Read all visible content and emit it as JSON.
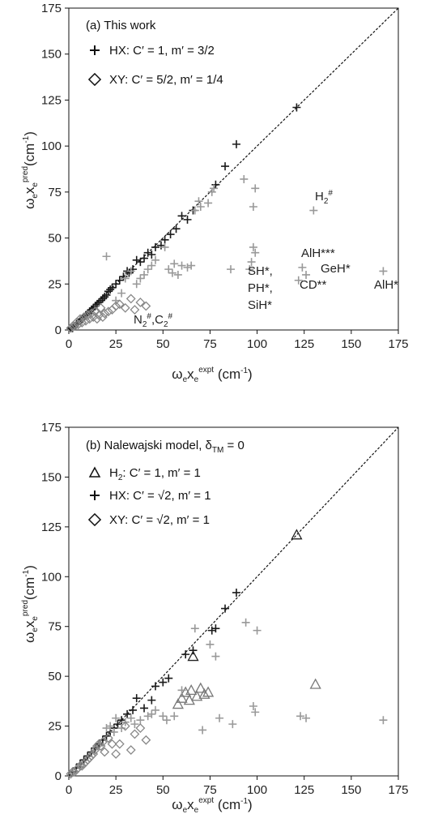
{
  "chart_data": [
    {
      "type": "scatter",
      "title": "(a) This work",
      "xlabel": "ωexeexpt (cm-1)",
      "ylabel": "ωexepred (cm-1)",
      "xlim": [
        0,
        175
      ],
      "ylim": [
        0,
        175
      ],
      "x_ticks": [
        "0",
        "25",
        "50",
        "75",
        "100",
        "125",
        "150",
        "175"
      ],
      "y_ticks": [
        "0",
        "25",
        "50",
        "75",
        "100",
        "125",
        "150",
        "175"
      ],
      "grid": false,
      "legend_position": "top-left",
      "legend": [
        {
          "marker": "plus",
          "text": "HX: C′ = 1, m′ = 3/2"
        },
        {
          "marker": "diamond",
          "text": "XY: C′ = 5/2, m′ = 1/4"
        }
      ],
      "annotations": [
        {
          "text": "H2#",
          "x": 128,
          "y": 70
        },
        {
          "text": "AlH***",
          "x": 122,
          "y": 40
        },
        {
          "text": "GeH*",
          "x": 131,
          "y": 33
        },
        {
          "text": "CD**",
          "x": 121,
          "y": 23
        },
        {
          "text": "AlH*",
          "x": 161,
          "y": 22
        },
        {
          "text": "SH*,",
          "x": 93,
          "y": 28
        },
        {
          "text": "PH*,",
          "x": 93,
          "y": 18
        },
        {
          "text": "SiH*",
          "x": 93,
          "y": 9
        },
        {
          "text": "N2#,C2#",
          "x": 34,
          "y": 3
        }
      ],
      "series": [
        {
          "name": "HX",
          "marker": "plus",
          "color": "#1a1a1a",
          "x": [
            121,
            89,
            83,
            78,
            66,
            63,
            60,
            57,
            54,
            51,
            49,
            46,
            44,
            42,
            40,
            38,
            36,
            34,
            32,
            31,
            29,
            27,
            25,
            23,
            22,
            21,
            20,
            19,
            18,
            17,
            16,
            15,
            14,
            13,
            12,
            11,
            10,
            9,
            8,
            7,
            6,
            5,
            4,
            3,
            2,
            1
          ],
          "y": [
            121,
            101,
            89,
            79,
            65,
            60,
            62,
            55,
            52,
            49,
            46,
            45,
            41,
            42,
            39,
            37,
            38,
            33,
            31,
            32,
            29,
            27,
            25,
            23,
            22,
            21,
            19,
            18,
            17,
            16,
            15,
            14,
            13,
            12,
            11,
            10,
            9,
            8,
            7,
            6,
            5,
            4,
            3,
            2,
            1,
            1
          ]
        },
        {
          "name": "HX (outliers)",
          "marker": "plus",
          "color": "#999999",
          "x": [
            130,
            167,
            124,
            126,
            122,
            98,
            99,
            97,
            98,
            99,
            96,
            93,
            86,
            77,
            76,
            74,
            70,
            69,
            67,
            65,
            63,
            60,
            58,
            56,
            55,
            53,
            51,
            46,
            44,
            42,
            40,
            38,
            36,
            33,
            30,
            28,
            25,
            20
          ],
          "y": [
            65,
            32,
            34,
            30,
            27,
            45,
            42,
            37,
            67,
            77,
            33,
            82,
            33,
            77,
            75,
            69,
            67,
            70,
            65,
            35,
            34,
            35,
            30,
            36,
            31,
            33,
            45,
            38,
            35,
            33,
            30,
            28,
            25,
            32,
            28,
            20,
            16,
            40
          ]
        },
        {
          "name": "XY",
          "marker": "diamond",
          "color": "#888888",
          "x": [
            41,
            38,
            35,
            33,
            30,
            27,
            25,
            23,
            21,
            19,
            18,
            17,
            16,
            15,
            14,
            13,
            12,
            11,
            10,
            9,
            8,
            7,
            6,
            5,
            4,
            3,
            2,
            1
          ],
          "y": [
            13,
            15,
            11,
            17,
            12,
            14,
            13,
            11,
            10,
            9,
            7,
            12,
            8,
            6,
            10,
            7,
            9,
            6,
            8,
            5,
            7,
            4,
            6,
            3,
            4,
            2,
            2,
            1
          ]
        }
      ]
    },
    {
      "type": "scatter",
      "title": "(b) Nalewajski model, δTM = 0",
      "xlabel": "ωexeexpt (cm-1)",
      "ylabel": "ωexepred (cm-1)",
      "xlim": [
        0,
        175
      ],
      "ylim": [
        0,
        175
      ],
      "x_ticks": [
        "0",
        "25",
        "50",
        "75",
        "100",
        "125",
        "150",
        "175"
      ],
      "y_ticks": [
        "0",
        "25",
        "50",
        "75",
        "100",
        "125",
        "150",
        "175"
      ],
      "grid": false,
      "legend_position": "top-left",
      "legend": [
        {
          "marker": "triangle",
          "text": "H2: C′ = 1, m′ = 1"
        },
        {
          "marker": "plus",
          "text": "HX: C′ = √2, m′ = 1"
        },
        {
          "marker": "diamond",
          "text": "XY: C′ = √2, m′ = 1"
        }
      ],
      "series": [
        {
          "name": "H2",
          "marker": "triangle",
          "color": "#777777",
          "x": [
            121,
            131,
            66,
            74,
            70,
            68,
            65,
            62,
            60,
            58,
            72,
            64
          ],
          "y": [
            121,
            46,
            60,
            42,
            44,
            40,
            43,
            42,
            39,
            36,
            41,
            38
          ],
          "stroke": [
            "#222",
            "#777",
            "#222",
            "#777",
            "#777",
            "#777",
            "#777",
            "#777",
            "#777",
            "#777",
            "#777",
            "#777"
          ]
        },
        {
          "name": "HX",
          "marker": "plus",
          "color": "#1a1a1a",
          "x": [
            89,
            83,
            78,
            76,
            66,
            62,
            53,
            50,
            46,
            44,
            40,
            36,
            34,
            31,
            28,
            26,
            24,
            22,
            20,
            18,
            16,
            14,
            12,
            10,
            8,
            6,
            4,
            2
          ],
          "y": [
            92,
            84,
            74,
            73,
            63,
            61,
            49,
            47,
            45,
            38,
            34,
            39,
            33,
            31,
            28,
            26,
            24,
            22,
            20,
            18,
            16,
            14,
            12,
            10,
            8,
            6,
            4,
            2
          ]
        },
        {
          "name": "HX (outliers)",
          "marker": "plus",
          "color": "#999999",
          "x": [
            167,
            126,
            123,
            99,
            100,
            98,
            94,
            87,
            80,
            78,
            75,
            71,
            67,
            60,
            56,
            52,
            50,
            46,
            44,
            42,
            38,
            35,
            33,
            30,
            28,
            25,
            24,
            22,
            20
          ],
          "y": [
            28,
            29,
            30,
            32,
            73,
            35,
            77,
            26,
            29,
            60,
            66,
            23,
            74,
            43,
            30,
            28,
            30,
            33,
            31,
            30,
            28,
            26,
            29,
            27,
            24,
            29,
            22,
            25,
            24
          ]
        },
        {
          "name": "XY",
          "marker": "diamond",
          "color": "#888888",
          "x": [
            41,
            38,
            35,
            33,
            30,
            27,
            25,
            23,
            21,
            19,
            18,
            17,
            16,
            15,
            14,
            13,
            12,
            11,
            10,
            9,
            8,
            7,
            6,
            5,
            4,
            3,
            2,
            1
          ],
          "y": [
            18,
            24,
            21,
            13,
            25,
            16,
            11,
            16,
            19,
            12,
            17,
            15,
            16,
            15,
            13,
            11,
            10,
            9,
            8,
            7,
            6,
            5,
            5,
            4,
            3,
            2,
            2,
            1
          ]
        }
      ]
    }
  ]
}
